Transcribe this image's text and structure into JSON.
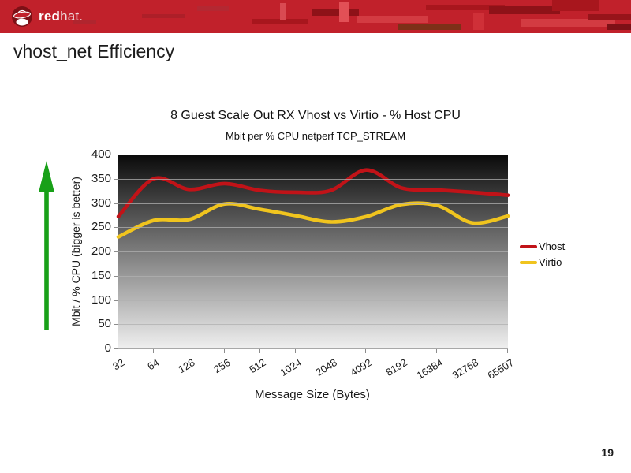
{
  "header": {
    "banner_color": "#c1212b",
    "brand_red": "red",
    "brand_hat": "hat."
  },
  "slide": {
    "title": "vhost_net Efficiency",
    "page_number": "19",
    "up_arrow_color": "#18a018"
  },
  "chart_data": {
    "type": "line",
    "title": "8 Guest Scale Out RX Vhost vs Virtio - % Host CPU",
    "subtitle": "Mbit per % CPU netperf TCP_STREAM",
    "xlabel": "Message Size (Bytes)",
    "ylabel": "Mbit / % CPU (bigger is better)",
    "categories": [
      "32",
      "64",
      "128",
      "256",
      "512",
      "1024",
      "2048",
      "4092",
      "8192",
      "16384",
      "32768",
      "65507"
    ],
    "y_ticks": [
      0,
      50,
      100,
      150,
      200,
      250,
      300,
      350,
      400
    ],
    "ylim": [
      0,
      400
    ],
    "grid": true,
    "legend_position": "right",
    "plot_bg_gradient": [
      "#0a0a0a",
      "#efefef"
    ],
    "series": [
      {
        "name": "Vhost",
        "color": "#c11318",
        "values": [
          272,
          350,
          328,
          340,
          326,
          322,
          326,
          368,
          331,
          327,
          322,
          316
        ]
      },
      {
        "name": "Virtio",
        "color": "#f0c41e",
        "values": [
          230,
          264,
          266,
          298,
          287,
          274,
          261,
          272,
          297,
          295,
          259,
          273
        ]
      }
    ]
  }
}
